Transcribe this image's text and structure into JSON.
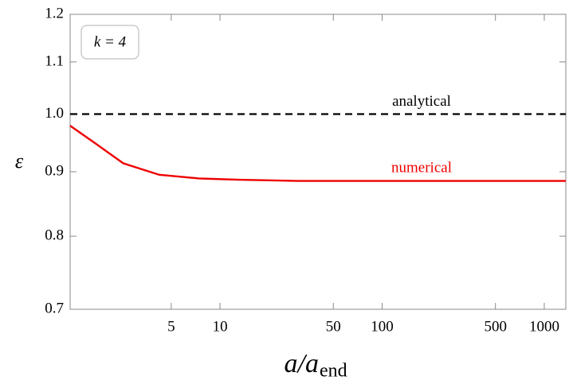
{
  "chart_data": {
    "type": "line",
    "xlabel": {
      "main": "a/a",
      "sub": "end"
    },
    "ylabel": "ε",
    "xscale": "log",
    "yscale": "log",
    "xlim": [
      1.19,
      1358
    ],
    "ylim": [
      0.7,
      1.2
    ],
    "xticks": [
      5,
      10,
      50,
      100,
      500,
      1000
    ],
    "yticks": [
      0.7,
      0.8,
      0.9,
      {
        "value": 1.0,
        "label": "1.0"
      },
      1.1,
      1.2
    ],
    "annotation": "k = 4",
    "reference_line": {
      "name": "analytical",
      "value": 1.0,
      "color": "#000000"
    },
    "series": [
      {
        "name": "numerical",
        "color": "#ee0000",
        "x": [
          1.19,
          1.7,
          2.53,
          4.22,
          7.4,
          13.1,
          30,
          100,
          1000,
          1358
        ],
        "values": [
          0.979,
          0.948,
          0.914,
          0.895,
          0.889,
          0.887,
          0.885,
          0.885,
          0.885,
          0.885
        ]
      }
    ]
  }
}
